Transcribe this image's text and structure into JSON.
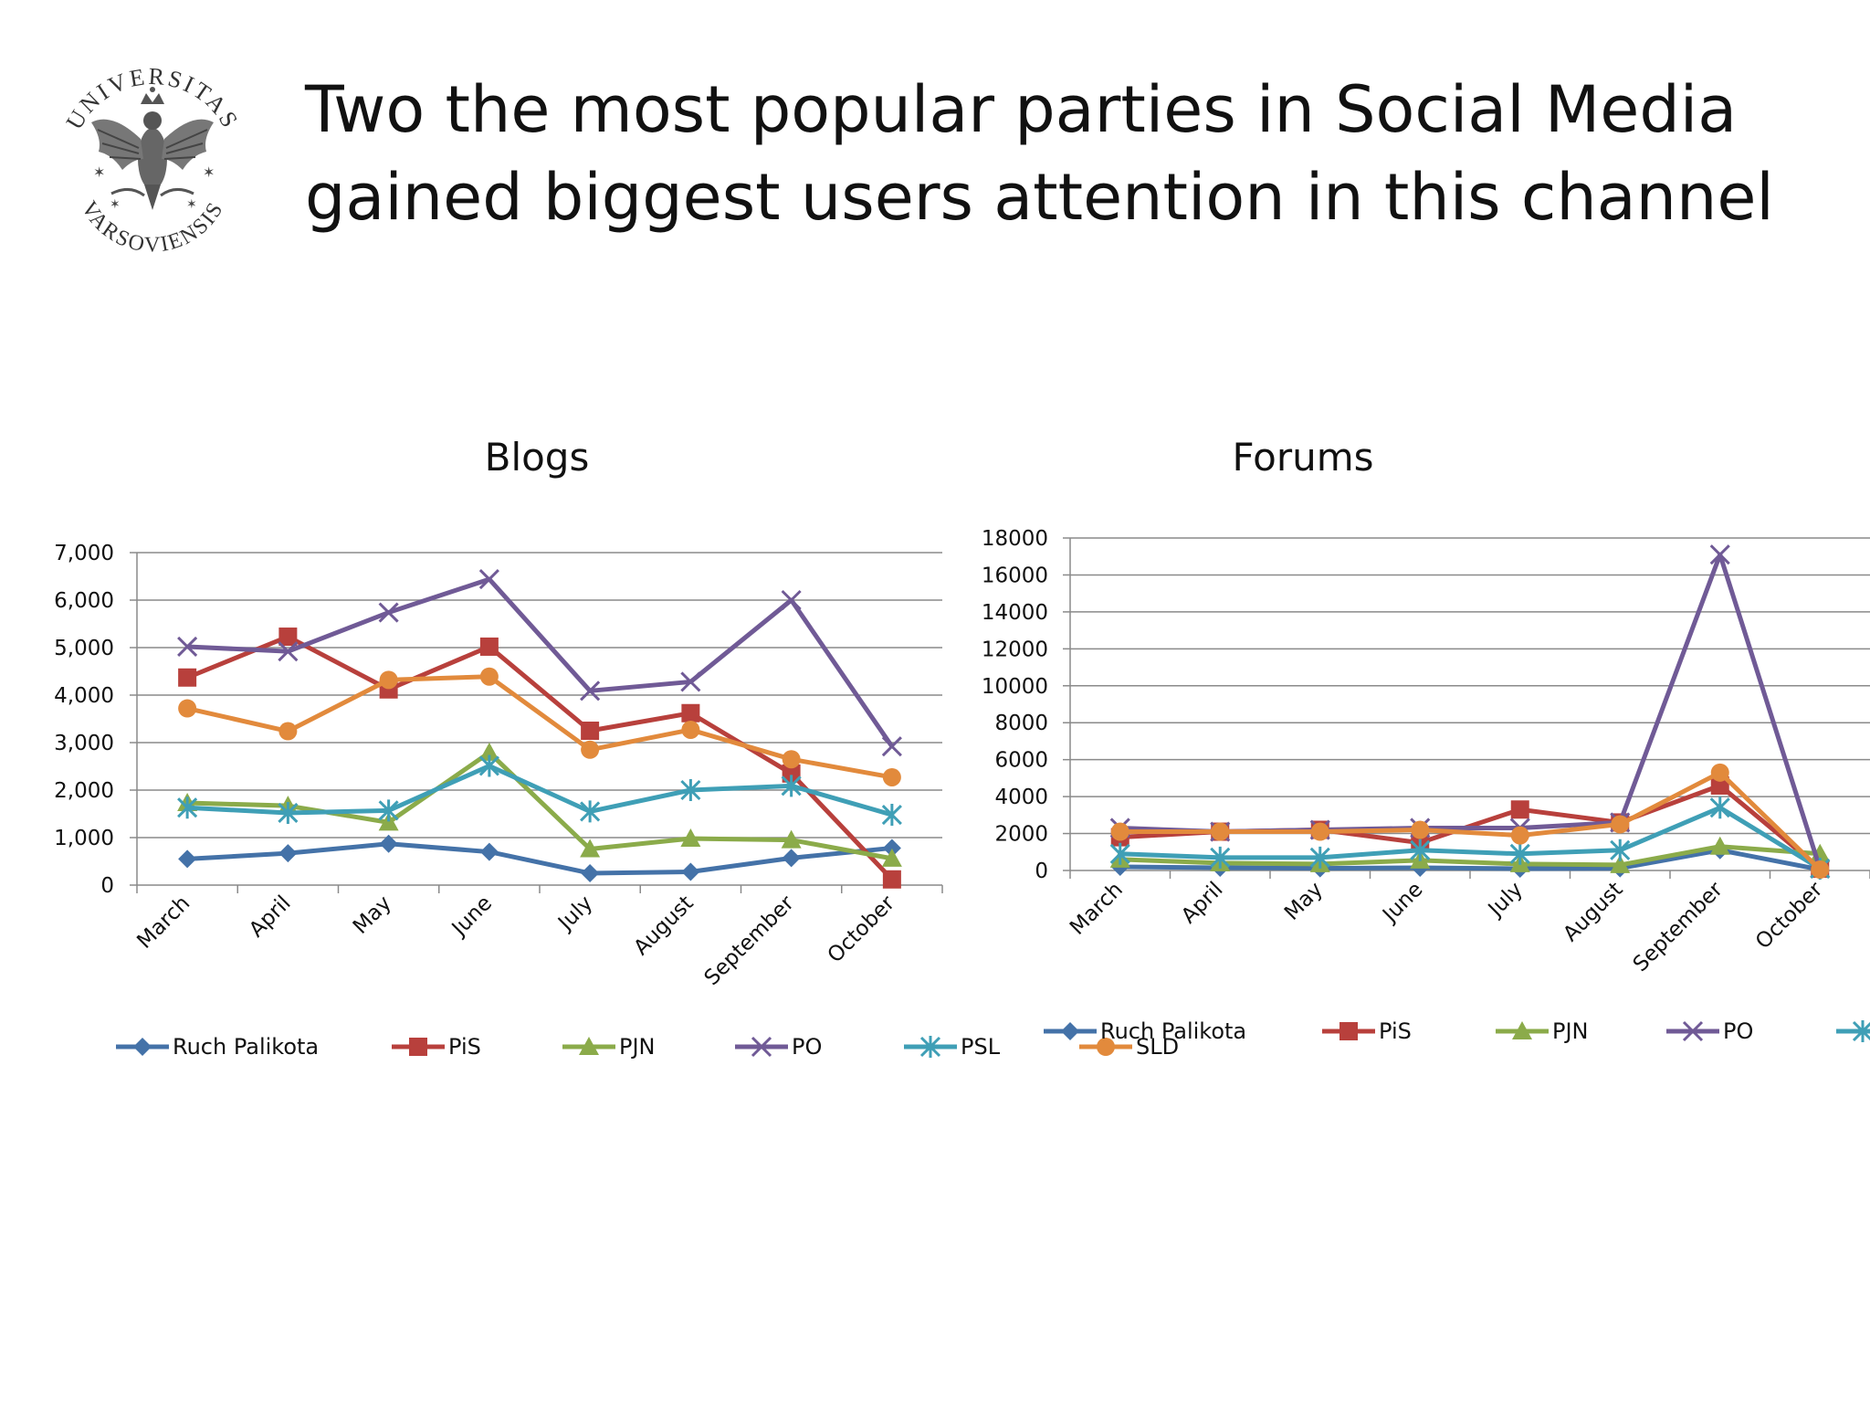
{
  "slide": {
    "title_lines": [
      "Two the most popular parties in Social Media",
      "gained biggest users attention in this channel"
    ]
  },
  "logo": {
    "top_text": "UNIVERSITAS",
    "bottom_text": "VARSOVIENSIS"
  },
  "colors": {
    "Ruch Palikota": "#4472a8",
    "PiS": "#b8403c",
    "PJN": "#8bab4a",
    "PO": "#705a96",
    "PSL": "#3f9fb6",
    "SLD": "#e28a3c"
  },
  "chart_data": [
    {
      "id": "blogs",
      "type": "line",
      "title": "Blogs",
      "categories": [
        "March",
        "April",
        "May",
        "June",
        "July",
        "August",
        "September",
        "October"
      ],
      "ylim": [
        0,
        7000
      ],
      "yticks": [
        0,
        1000,
        2000,
        3000,
        4000,
        5000,
        6000,
        7000
      ],
      "ytick_labels": [
        "0",
        "1,000",
        "2,000",
        "3,000",
        "4,000",
        "5,000",
        "6,000",
        "7,000"
      ],
      "grid": true,
      "legend": "bottom",
      "series": [
        {
          "name": "Ruch Palikota",
          "marker": "diamond",
          "values": [
            550,
            670,
            870,
            700,
            250,
            280,
            570,
            780
          ]
        },
        {
          "name": "PiS",
          "marker": "square",
          "values": [
            4370,
            5230,
            4120,
            5020,
            3250,
            3620,
            2350,
            120
          ]
        },
        {
          "name": "PJN",
          "marker": "triangle",
          "values": [
            1730,
            1670,
            1320,
            2790,
            760,
            980,
            950,
            560
          ]
        },
        {
          "name": "PO",
          "marker": "x",
          "values": [
            5020,
            4920,
            5740,
            6440,
            4090,
            4280,
            6000,
            2920
          ]
        },
        {
          "name": "PSL",
          "marker": "star",
          "values": [
            1630,
            1520,
            1570,
            2510,
            1550,
            2000,
            2090,
            1480
          ]
        },
        {
          "name": "SLD",
          "marker": "circle",
          "values": [
            3720,
            3240,
            4320,
            4390,
            2850,
            3270,
            2650,
            2270
          ]
        }
      ]
    },
    {
      "id": "forums",
      "type": "line",
      "title": "Forums",
      "categories": [
        "March",
        "April",
        "May",
        "June",
        "July",
        "August",
        "September",
        "October"
      ],
      "ylim": [
        0,
        18000
      ],
      "yticks": [
        0,
        2000,
        4000,
        6000,
        8000,
        10000,
        12000,
        14000,
        16000,
        18000
      ],
      "ytick_labels": [
        "0",
        "2000",
        "4000",
        "6000",
        "8000",
        "10000",
        "12000",
        "14000",
        "16000",
        "18000"
      ],
      "grid": true,
      "legend": "bottom",
      "series": [
        {
          "name": "Ruch Palikota",
          "marker": "diamond",
          "values": [
            200,
            150,
            120,
            150,
            100,
            120,
            1100,
            50
          ]
        },
        {
          "name": "PiS",
          "marker": "square",
          "values": [
            1800,
            2100,
            2200,
            1500,
            3300,
            2600,
            4600,
            100
          ]
        },
        {
          "name": "PJN",
          "marker": "triangle",
          "values": [
            600,
            400,
            350,
            550,
            350,
            300,
            1300,
            900
          ]
        },
        {
          "name": "PO",
          "marker": "x",
          "values": [
            2300,
            2100,
            2200,
            2300,
            2300,
            2600,
            17100,
            100
          ]
        },
        {
          "name": "PSL",
          "marker": "star",
          "values": [
            900,
            700,
            700,
            1100,
            900,
            1100,
            3400,
            100
          ]
        },
        {
          "name": "SLD",
          "marker": "circle",
          "values": [
            2100,
            2100,
            2100,
            2200,
            1900,
            2500,
            5300,
            50
          ]
        }
      ]
    }
  ]
}
